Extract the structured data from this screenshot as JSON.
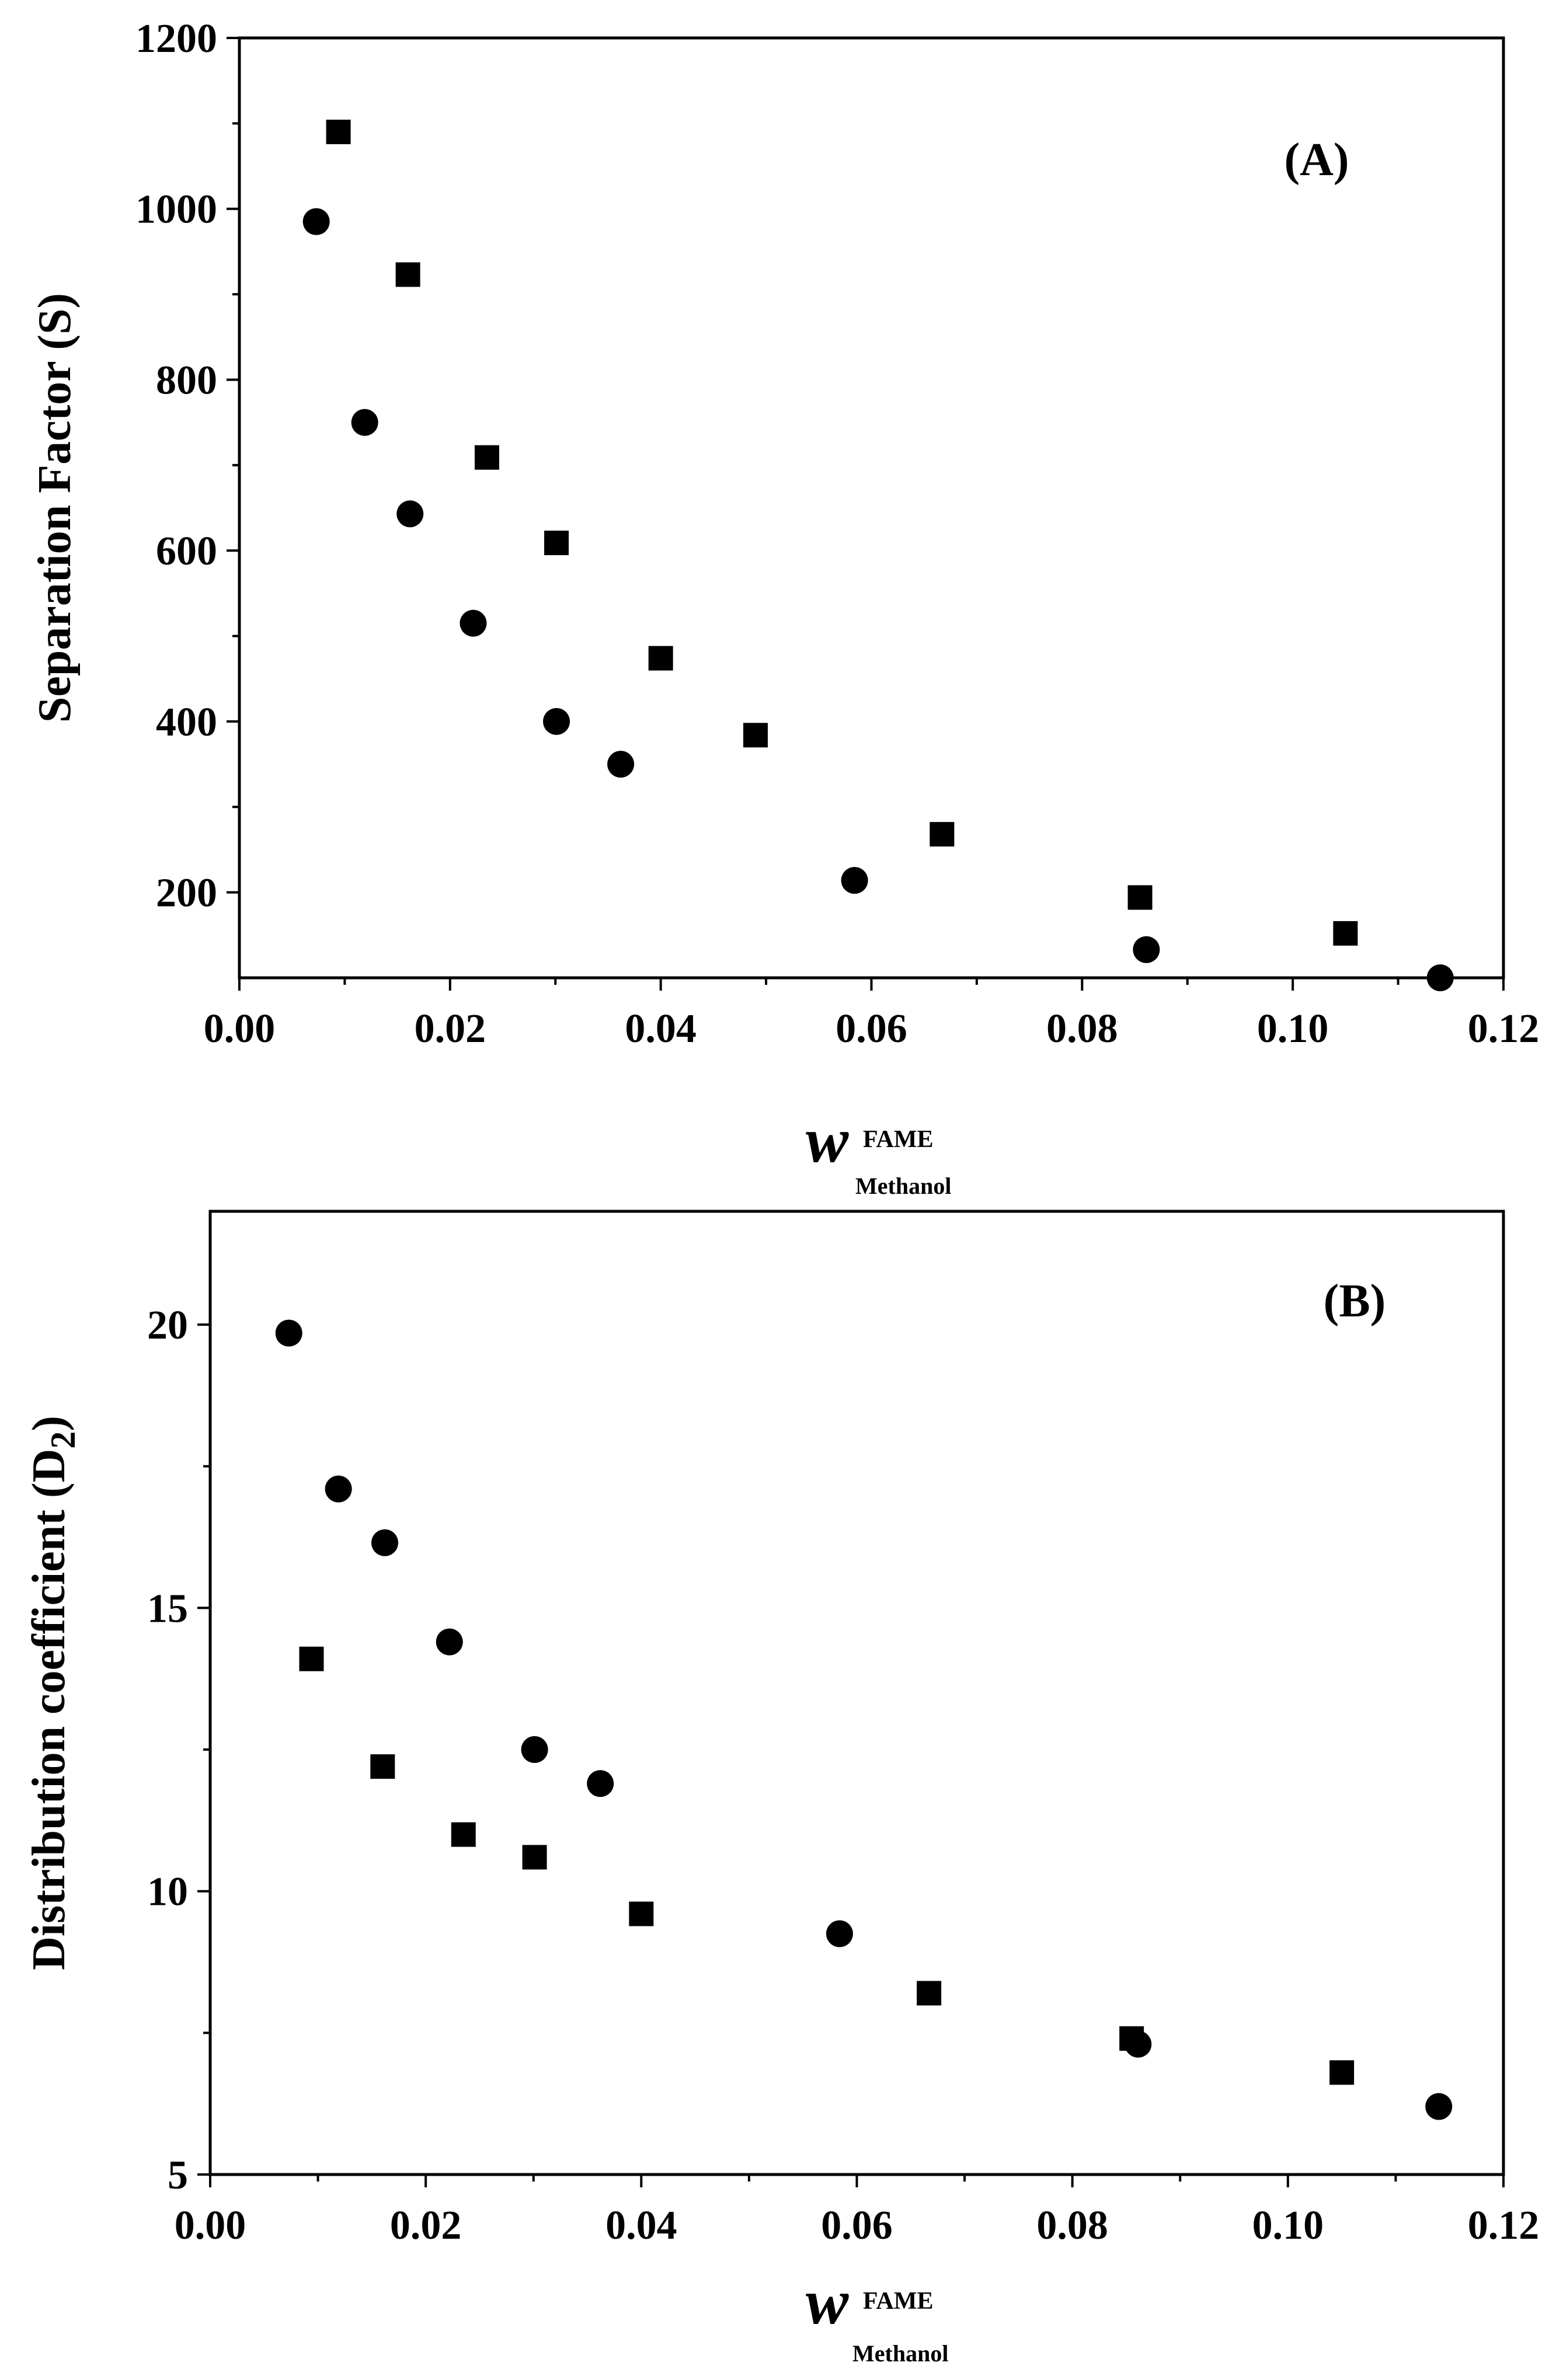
{
  "chart_data": [
    {
      "type": "scatter",
      "panel_label": "(A)",
      "ylabel": "Separation Factor (S)",
      "xlabel": {
        "symbol": "w",
        "superscript": "FAME",
        "subscript": "Methanol"
      },
      "xlim": [
        0.0,
        0.12
      ],
      "ylim": [
        100,
        1200
      ],
      "x_ticks": [
        0.0,
        0.02,
        0.04,
        0.06,
        0.08,
        0.1,
        0.12
      ],
      "x_tick_labels": [
        "0.00",
        "0.02",
        "0.04",
        "0.06",
        "0.08",
        "0.10",
        "0.12"
      ],
      "y_ticks": [
        200,
        400,
        600,
        800,
        1000,
        1200
      ],
      "y_tick_labels": [
        "200",
        "400",
        "600",
        "800",
        "1000",
        "1200"
      ],
      "series": [
        {
          "name": "squares",
          "marker": "square",
          "x": [
            0.0094,
            0.016,
            0.0235,
            0.0301,
            0.04,
            0.049,
            0.0667,
            0.0855,
            0.105
          ],
          "y": [
            1090,
            923,
            709,
            609,
            474,
            384,
            268,
            194,
            152
          ]
        },
        {
          "name": "circles",
          "marker": "circle",
          "x": [
            0.0073,
            0.0119,
            0.0162,
            0.0222,
            0.0301,
            0.0362,
            0.0584,
            0.0861,
            0.114
          ],
          "y": [
            985,
            750,
            643,
            515,
            400,
            350,
            214,
            133,
            100
          ]
        }
      ]
    },
    {
      "type": "scatter",
      "panel_label": "(B)",
      "ylabel": "Distribution coefficient (D2)",
      "ylabel_main": "Distribution coefficient (D",
      "ylabel_sub": "2",
      "ylabel_close": ")",
      "xlabel": {
        "symbol": "w",
        "superscript": "FAME",
        "subscript": "Methanol"
      },
      "xlim": [
        0.0,
        0.12
      ],
      "ylim": [
        5,
        22
      ],
      "x_ticks": [
        0.0,
        0.02,
        0.04,
        0.06,
        0.08,
        0.1,
        0.12
      ],
      "x_tick_labels": [
        "0.00",
        "0.02",
        "0.04",
        "0.06",
        "0.08",
        "0.10",
        "0.12"
      ],
      "y_ticks": [
        5,
        10,
        15,
        20
      ],
      "y_tick_labels": [
        "5",
        "10",
        "15",
        "20"
      ],
      "series": [
        {
          "name": "circles",
          "marker": "circle",
          "x": [
            0.0073,
            0.0119,
            0.0162,
            0.0222,
            0.0301,
            0.0362,
            0.0584,
            0.0861,
            0.114
          ],
          "y": [
            19.85,
            17.1,
            16.15,
            14.4,
            12.5,
            11.9,
            9.25,
            7.3,
            6.2
          ]
        },
        {
          "name": "squares",
          "marker": "square",
          "x": [
            0.0094,
            0.016,
            0.0235,
            0.0301,
            0.04,
            0.0667,
            0.0855,
            0.105
          ],
          "y": [
            14.1,
            12.2,
            11.0,
            10.6,
            9.6,
            8.2,
            7.4,
            6.8
          ]
        }
      ]
    }
  ]
}
